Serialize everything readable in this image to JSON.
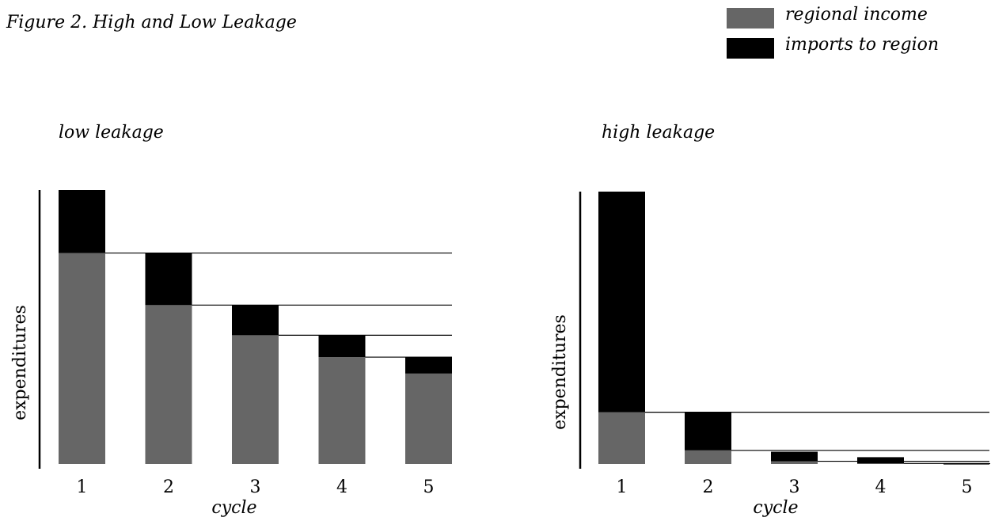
{
  "title": "Figure 2.  High and Low Leakage",
  "legend": [
    {
      "label": "regional income",
      "color": "#666666"
    },
    {
      "label": "imports to region",
      "color": "#000000"
    }
  ],
  "colors": {
    "regional_income": "#666666",
    "imports": "#000000"
  },
  "chart_data": [
    {
      "type": "bar",
      "stacked": true,
      "title": "low leakage",
      "xlabel": "cycle",
      "ylabel": "expenditures",
      "categories": [
        "1",
        "2",
        "3",
        "4",
        "5"
      ],
      "ylim": [
        0,
        100
      ],
      "series": [
        {
          "name": "regional income",
          "values": [
            77,
            58,
            47,
            39,
            33
          ]
        },
        {
          "name": "imports to region",
          "values": [
            23,
            19,
            11,
            8,
            6
          ]
        }
      ]
    },
    {
      "type": "bar",
      "stacked": true,
      "title": "high leakage",
      "xlabel": "cycle",
      "ylabel": "expenditures",
      "categories": [
        "1",
        "2",
        "3",
        "4",
        "5"
      ],
      "ylim": [
        0,
        100
      ],
      "series": [
        {
          "name": "regional income",
          "values": [
            19,
            5,
            1,
            0.2,
            0
          ]
        },
        {
          "name": "imports to region",
          "values": [
            81,
            14,
            3.5,
            2.3,
            0.3
          ]
        }
      ]
    }
  ]
}
